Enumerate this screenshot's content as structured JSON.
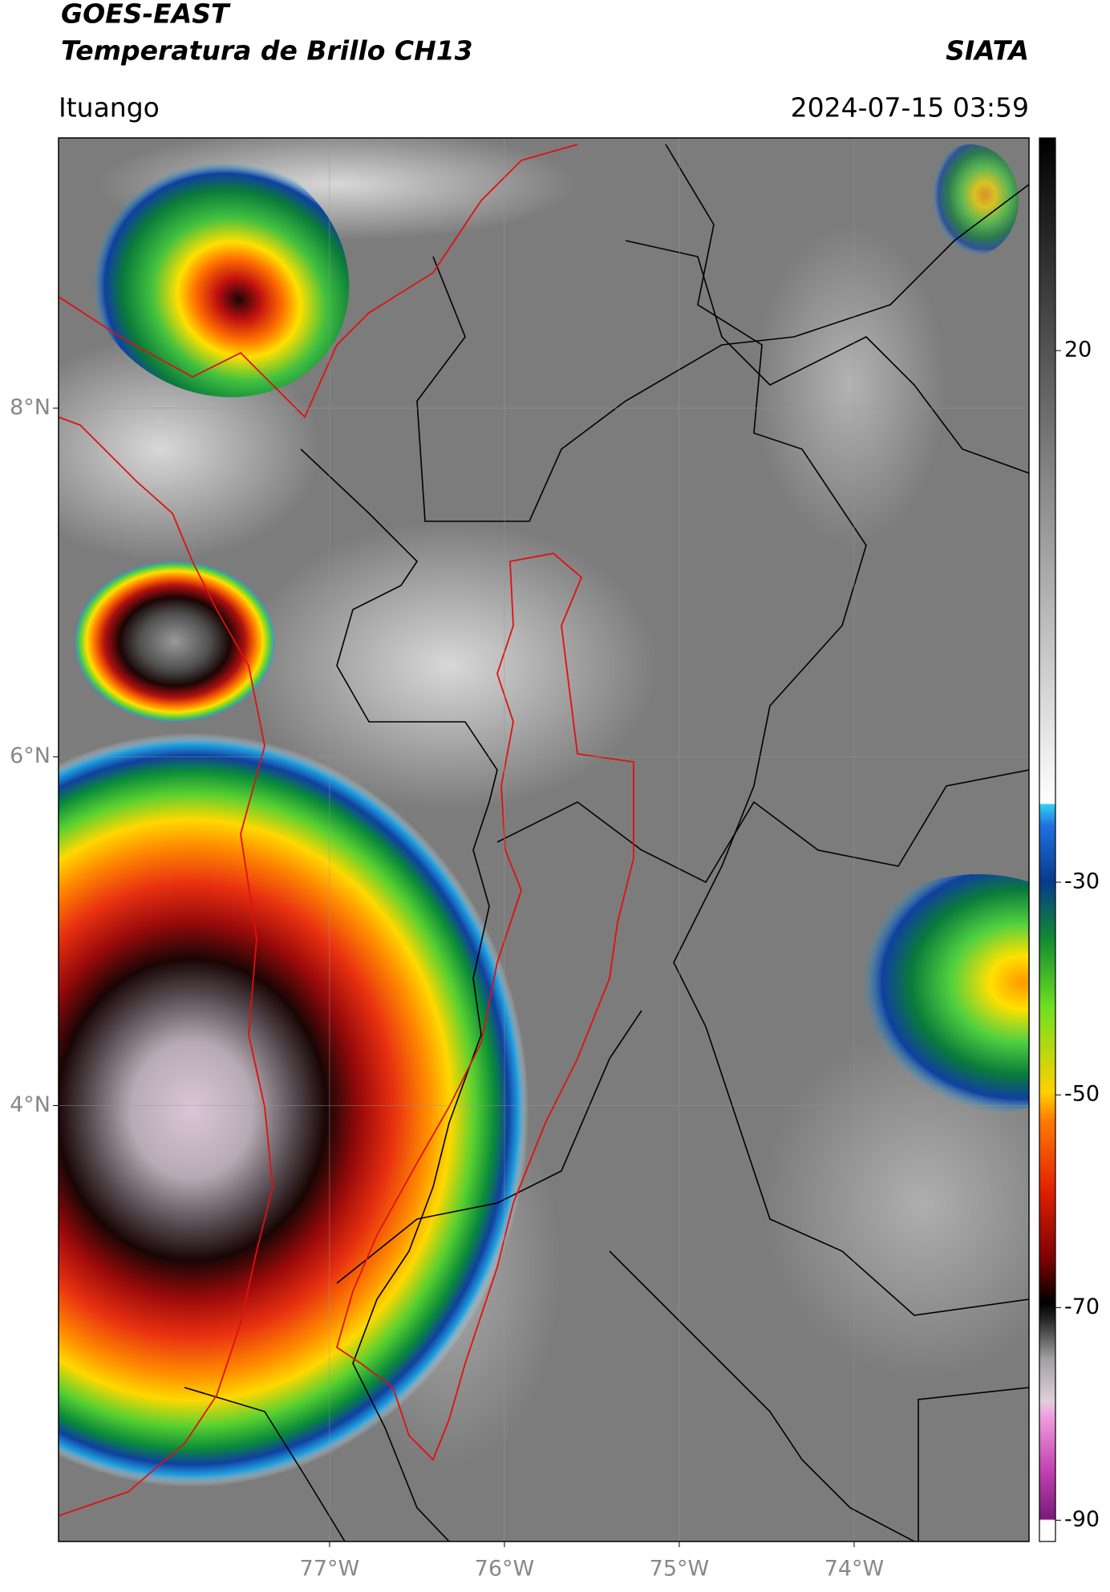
{
  "header": {
    "title": "GOES-EAST",
    "subtitle": "Temperatura de Brillo CH13",
    "source": "SIATA",
    "location": "Ituango",
    "datetime": "2024-07-15 03:59"
  },
  "map": {
    "xlim": [
      -78.55,
      -73.0
    ],
    "ylim": [
      1.5,
      9.55
    ],
    "xticks": [
      {
        "value": -77,
        "label": "77°W"
      },
      {
        "value": -76,
        "label": "76°W"
      },
      {
        "value": -75,
        "label": "75°W"
      },
      {
        "value": -74,
        "label": "74°W"
      }
    ],
    "yticks": [
      {
        "value": 4,
        "label": "4°N"
      },
      {
        "value": 6,
        "label": "6°N"
      },
      {
        "value": 8,
        "label": "8°N"
      }
    ],
    "grid": true
  },
  "colorbar": {
    "lim": [
      -92,
      40
    ],
    "ticks": [
      -90,
      -70,
      -50,
      -30,
      20
    ]
  }
}
